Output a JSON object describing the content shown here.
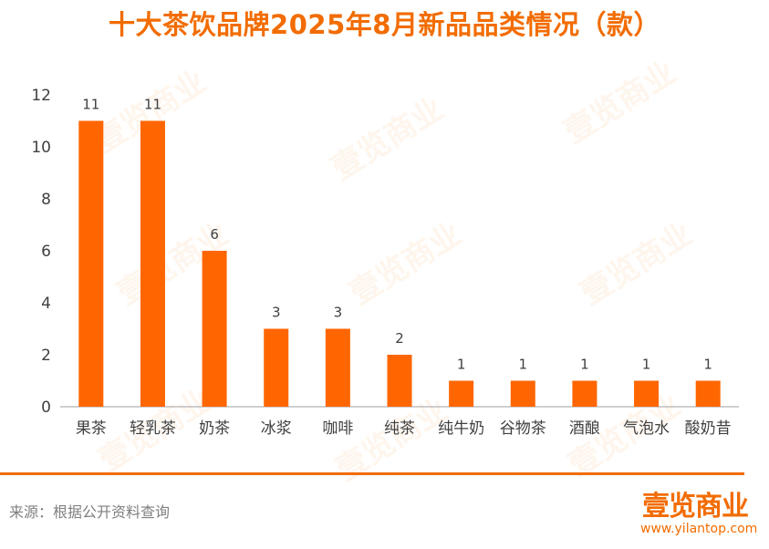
{
  "title": "十大茶饮品牌2025年8月新品品类情况（款）",
  "source": "来源：根据公开资料查询",
  "logo": {
    "name": "壹览商业",
    "url": "www.yilantop.com"
  },
  "watermark_text": "壹览商业",
  "colors": {
    "accent": "#f26c00",
    "bar": "#ff6600",
    "axis_text": "#404040",
    "source_text": "#7f7f7f"
  },
  "chart_data": {
    "type": "bar",
    "title": "十大茶饮品牌2025年8月新品品类情况（款）",
    "categories": [
      "果茶",
      "轻乳茶",
      "奶茶",
      "冰浆",
      "咖啡",
      "纯茶",
      "纯牛奶",
      "谷物茶",
      "酒酿",
      "气泡水",
      "酸奶昔"
    ],
    "values": [
      11,
      11,
      6,
      3,
      3,
      2,
      1,
      1,
      1,
      1,
      1
    ],
    "ylim": [
      0,
      12
    ],
    "yticks": [
      0,
      2,
      4,
      6,
      8,
      10,
      12
    ],
    "xlabel": "",
    "ylabel": "",
    "grid": false,
    "data_labels": true
  }
}
